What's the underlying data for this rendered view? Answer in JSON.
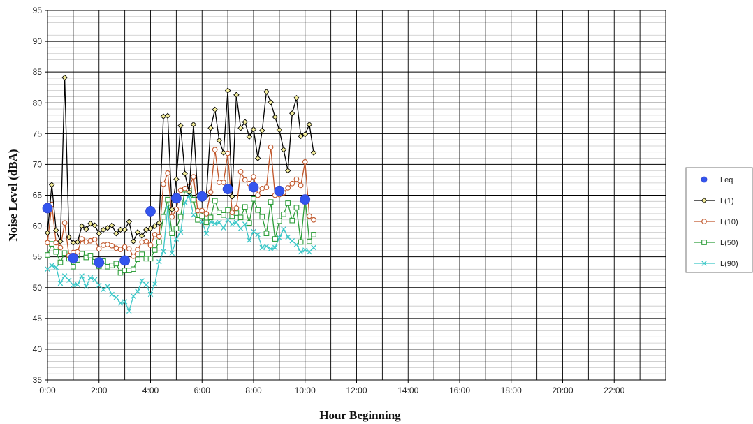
{
  "chart_data": {
    "type": "line",
    "xlabel": "Hour Beginning",
    "ylabel": "Noise Level (dBA)",
    "xlim": [
      0,
      24
    ],
    "ylim": [
      35,
      95
    ],
    "x_ticks": [
      0,
      2,
      4,
      6,
      8,
      10,
      12,
      14,
      16,
      18,
      20,
      22
    ],
    "x_tick_labels": [
      "0:00",
      "2:00",
      "4:00",
      "6:00",
      "8:00",
      "10:00",
      "12:00",
      "14:00",
      "16:00",
      "18:00",
      "20:00",
      "22:00"
    ],
    "y_ticks": [
      35,
      40,
      45,
      50,
      55,
      60,
      65,
      70,
      75,
      80,
      85,
      90,
      95
    ],
    "grid": "major every 5 dBA, minor every 1 dBA, vertical every hour",
    "legend_position": "right",
    "interval_x": [
      0.0,
      0.1667,
      0.3333,
      0.5,
      0.6667,
      0.8333,
      1.0,
      1.1667,
      1.3333,
      1.5,
      1.6667,
      1.8333,
      2.0,
      2.1667,
      2.3333,
      2.5,
      2.6667,
      2.8333,
      3.0,
      3.1667,
      3.3333,
      3.5,
      3.6667,
      3.8333,
      4.0,
      4.1667,
      4.3333,
      4.5,
      4.6667,
      4.8333,
      5.0,
      5.1667,
      5.3333,
      5.5,
      5.6667,
      5.8333,
      6.0,
      6.1667,
      6.3333,
      6.5,
      6.6667,
      6.8333,
      7.0,
      7.1667,
      7.3333,
      7.5,
      7.6667,
      7.8333,
      8.0,
      8.1667,
      8.3333,
      8.5,
      8.6667,
      8.8333,
      9.0,
      9.1667,
      9.3333,
      9.5,
      9.6667,
      9.8333,
      10.0,
      10.1667,
      10.3333,
      10.5
    ],
    "series": [
      {
        "name": "Leq",
        "color": "#3355ee",
        "marker": "circle",
        "line": false,
        "x": [
          0,
          1,
          2,
          3,
          4,
          5,
          6,
          7,
          8,
          9,
          10
        ],
        "values": [
          62.9,
          54.8,
          54.1,
          54.4,
          62.4,
          64.5,
          64.8,
          66.0,
          66.3,
          65.7,
          64.3
        ]
      },
      {
        "name": "L(1)",
        "color": "#000000",
        "marker": "diamond",
        "line": true,
        "values": [
          58.9,
          66.7,
          59.3,
          57.5,
          84.1,
          58.2,
          57.3,
          57.4,
          60.0,
          59.5,
          60.4,
          60.1,
          58.8,
          59.4,
          59.7,
          60.1,
          58.8,
          59.4,
          59.4,
          60.7,
          57.5,
          59.0,
          58.4,
          59.4,
          59.6,
          60.0,
          60.5,
          77.8,
          77.9,
          62.7,
          67.6,
          76.3,
          68.5,
          65.5,
          76.5,
          64.9,
          64.3,
          64.9,
          75.9,
          78.9,
          73.9,
          71.9,
          82.0,
          64.8,
          81.3,
          75.9,
          76.9,
          74.5,
          75.7,
          71.0,
          75.5,
          81.8,
          80.1,
          77.7,
          75.6,
          72.4,
          69.0,
          78.3,
          80.8,
          74.6,
          74.9,
          76.5,
          71.9
        ]
      },
      {
        "name": "L(10)",
        "color": "#c0562a",
        "marker": "circle-open",
        "line": true,
        "values": [
          57.3,
          63.5,
          57.3,
          56.5,
          60.5,
          55.2,
          55.7,
          55.8,
          57.9,
          57.4,
          57.6,
          57.8,
          56.3,
          56.9,
          57.0,
          56.8,
          56.4,
          56.2,
          56.6,
          56.3,
          55.1,
          56.2,
          57.4,
          57.5,
          56.9,
          58.6,
          58.3,
          66.8,
          68.6,
          61.5,
          62.7,
          65.8,
          66.1,
          66.4,
          68.0,
          62.5,
          62.5,
          62.0,
          65.5,
          72.4,
          67.1,
          67.1,
          71.8,
          62.2,
          62.9,
          68.8,
          67.5,
          66.9,
          68.0,
          65.0,
          66.1,
          66.3,
          72.8,
          65.0,
          65.1,
          65.4,
          66.2,
          66.9,
          67.6,
          66.6,
          70.4,
          61.6,
          61.0
        ]
      },
      {
        "name": "L(50)",
        "color": "#2e9e3a",
        "marker": "square-open",
        "line": true,
        "values": [
          55.3,
          57.1,
          55.8,
          54.1,
          55.6,
          54.7,
          53.4,
          54.5,
          55.5,
          54.9,
          55.2,
          54.2,
          53.5,
          54.3,
          53.4,
          53.6,
          53.9,
          52.4,
          52.8,
          52.8,
          53.0,
          54.6,
          55.4,
          54.7,
          54.7,
          56.1,
          57.4,
          61.5,
          64.3,
          58.8,
          59.6,
          61.5,
          65.9,
          66.0,
          64.3,
          61.0,
          61.6,
          60.6,
          61.4,
          64.1,
          62.2,
          61.8,
          62.6,
          61.6,
          62.1,
          61.4,
          63.1,
          60.5,
          64.4,
          62.6,
          61.5,
          58.8,
          63.9,
          57.9,
          60.8,
          61.9,
          63.7,
          60.9,
          63.0,
          57.4,
          64.6,
          57.5,
          58.6
        ]
      },
      {
        "name": "L(90)",
        "color": "#3cc8c8",
        "marker": "x",
        "line": true,
        "values": [
          53.0,
          53.6,
          53.3,
          50.7,
          51.9,
          51.2,
          50.4,
          50.5,
          51.9,
          50.2,
          51.6,
          51.3,
          50.4,
          49.7,
          50.2,
          48.9,
          48.4,
          47.5,
          47.7,
          46.2,
          48.6,
          49.4,
          51.1,
          50.5,
          48.9,
          50.6,
          54.2,
          55.9,
          63.1,
          55.6,
          57.9,
          59.0,
          63.8,
          65.0,
          61.8,
          61.2,
          60.7,
          58.8,
          60.7,
          60.4,
          60.6,
          59.7,
          61.0,
          60.3,
          60.6,
          59.6,
          60.3,
          57.7,
          59.1,
          58.6,
          56.5,
          56.7,
          56.3,
          56.5,
          58.1,
          59.5,
          58.2,
          57.6,
          57.0,
          55.8,
          56.1,
          55.8,
          56.5
        ]
      }
    ]
  }
}
